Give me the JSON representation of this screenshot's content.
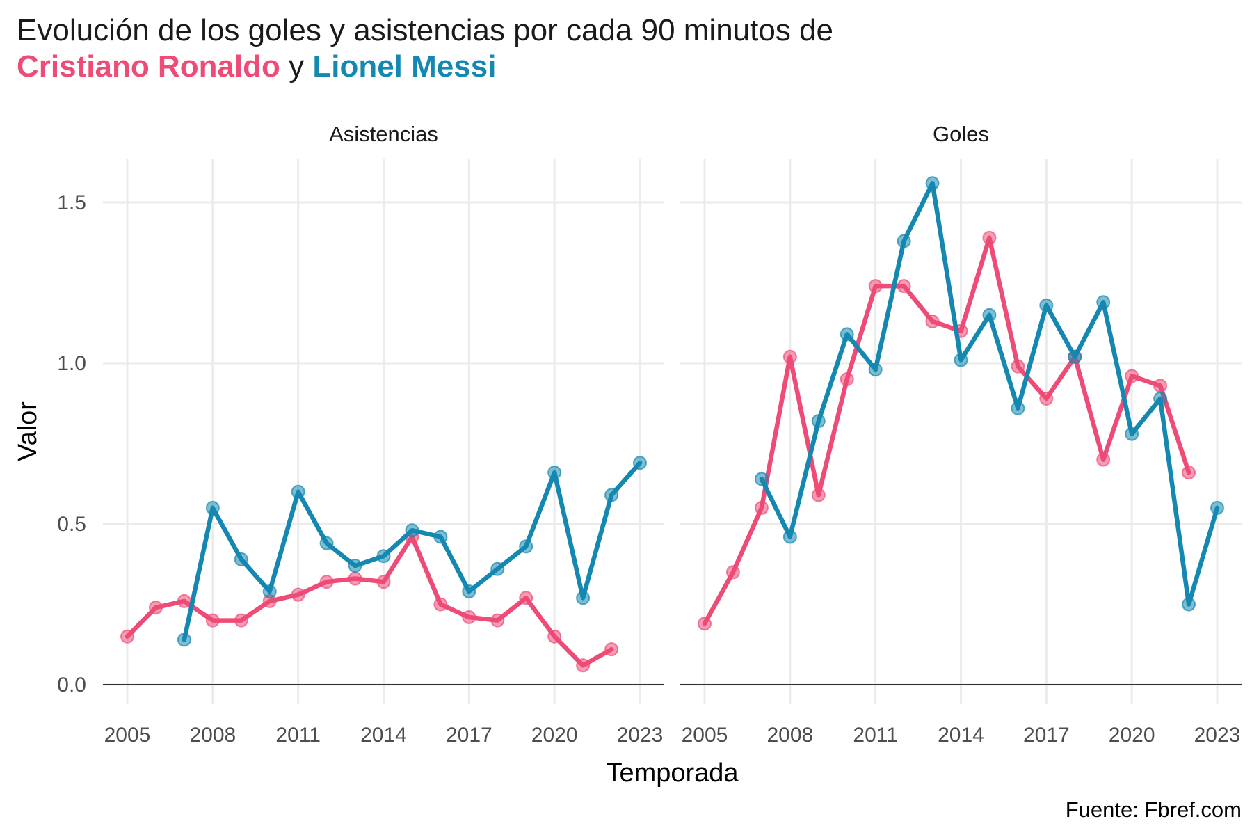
{
  "title": {
    "line1": "Evolución de los goles y asistencias por cada 90 minutos de",
    "ronaldo": "Cristiano Ronaldo",
    "joiner": " y ",
    "messi": "Lionel Messi"
  },
  "caption": "Fuente: Fbref.com",
  "colors": {
    "ronaldo": "#EE4B76",
    "messi": "#1488B1",
    "grid": "#EBEBEB",
    "baseline": "#333333"
  },
  "chart_data": {
    "type": "line",
    "xlabel": "Temporada",
    "ylabel": "Valor",
    "xlim": [
      2005,
      2023
    ],
    "ylim": [
      0,
      1.6
    ],
    "x_ticks": [
      2005,
      2008,
      2011,
      2014,
      2017,
      2020,
      2023
    ],
    "y_ticks": [
      0.0,
      0.5,
      1.0,
      1.5
    ],
    "y_tick_labels": [
      "0.0",
      "0.5",
      "1.0",
      "1.5"
    ],
    "grid": true,
    "legend": "none",
    "facets": [
      {
        "label": "Asistencias",
        "series": [
          {
            "name": "Cristiano Ronaldo",
            "color": "#EE4B76",
            "x": [
              2005,
              2006,
              2007,
              2008,
              2009,
              2010,
              2011,
              2012,
              2013,
              2014,
              2015,
              2016,
              2017,
              2018,
              2019,
              2020,
              2021,
              2022
            ],
            "values": [
              0.15,
              0.24,
              0.26,
              0.2,
              0.2,
              0.26,
              0.28,
              0.32,
              0.33,
              0.32,
              0.46,
              0.25,
              0.21,
              0.2,
              0.27,
              0.15,
              0.06,
              0.11
            ]
          },
          {
            "name": "Lionel Messi",
            "color": "#1488B1",
            "x": [
              2007,
              2008,
              2009,
              2010,
              2011,
              2012,
              2013,
              2014,
              2015,
              2016,
              2017,
              2018,
              2019,
              2020,
              2021,
              2022,
              2023
            ],
            "values": [
              0.14,
              0.55,
              0.39,
              0.29,
              0.6,
              0.44,
              0.37,
              0.4,
              0.48,
              0.46,
              0.29,
              0.36,
              0.43,
              0.66,
              0.27,
              0.59,
              0.69
            ]
          }
        ]
      },
      {
        "label": "Goles",
        "series": [
          {
            "name": "Cristiano Ronaldo",
            "color": "#EE4B76",
            "x": [
              2005,
              2006,
              2007,
              2008,
              2009,
              2010,
              2011,
              2012,
              2013,
              2014,
              2015,
              2016,
              2017,
              2018,
              2019,
              2020,
              2021,
              2022
            ],
            "values": [
              0.19,
              0.35,
              0.55,
              1.02,
              0.59,
              0.95,
              1.24,
              1.24,
              1.13,
              1.1,
              1.39,
              0.99,
              0.89,
              1.02,
              0.7,
              0.96,
              0.93,
              0.66
            ]
          },
          {
            "name": "Lionel Messi",
            "color": "#1488B1",
            "x": [
              2007,
              2008,
              2009,
              2010,
              2011,
              2012,
              2013,
              2014,
              2015,
              2016,
              2017,
              2018,
              2019,
              2020,
              2021,
              2022,
              2023
            ],
            "values": [
              0.64,
              0.46,
              0.82,
              1.09,
              0.98,
              1.38,
              1.56,
              1.01,
              1.15,
              0.86,
              1.18,
              1.02,
              1.19,
              0.78,
              0.89,
              0.25,
              0.55
            ]
          }
        ]
      }
    ]
  }
}
